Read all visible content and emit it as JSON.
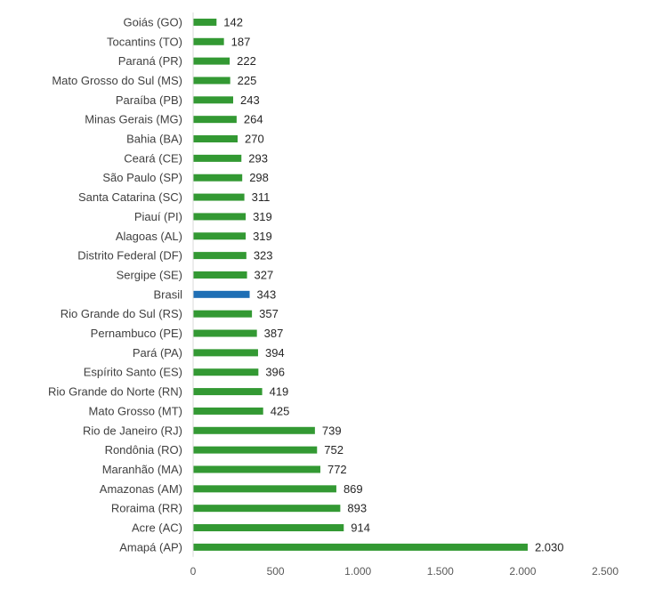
{
  "chart_data": {
    "type": "bar",
    "orientation": "horizontal",
    "categories": [
      "Goiás (GO)",
      "Tocantins (TO)",
      "Paraná (PR)",
      "Mato Grosso do Sul (MS)",
      "Paraíba (PB)",
      "Minas Gerais (MG)",
      "Bahia (BA)",
      "Ceará (CE)",
      "São Paulo (SP)",
      "Santa Catarina (SC)",
      "Piauí (PI)",
      "Alagoas (AL)",
      "Distrito Federal (DF)",
      "Sergipe (SE)",
      "Brasil",
      "Rio Grande do Sul (RS)",
      "Pernambuco (PE)",
      "Pará (PA)",
      "Espírito Santo (ES)",
      "Rio Grande do Norte (RN)",
      "Mato Grosso (MT)",
      "Rio de Janeiro (RJ)",
      "Rondônia (RO)",
      "Maranhão (MA)",
      "Amazonas (AM)",
      "Roraima (RR)",
      "Acre (AC)",
      "Amapá (AP)"
    ],
    "values": [
      142,
      187,
      222,
      225,
      243,
      264,
      270,
      293,
      298,
      311,
      319,
      319,
      323,
      327,
      343,
      357,
      387,
      394,
      396,
      419,
      425,
      739,
      752,
      772,
      869,
      893,
      914,
      2030
    ],
    "value_labels": [
      "142",
      "187",
      "222",
      "225",
      "243",
      "264",
      "270",
      "293",
      "298",
      "311",
      "319",
      "319",
      "323",
      "327",
      "343",
      "357",
      "387",
      "394",
      "396",
      "419",
      "425",
      "739",
      "752",
      "772",
      "869",
      "893",
      "914",
      "2.030"
    ],
    "xlim": [
      0,
      2500
    ],
    "x_ticks": [
      0,
      500,
      1000,
      1500,
      2000,
      2500
    ],
    "x_tick_labels": [
      "0",
      "500",
      "1.000",
      "1.500",
      "2.000",
      "2.500"
    ],
    "grid": false,
    "legend": "none",
    "colors": {
      "default": "#339933",
      "highlight": "#1f6fb5"
    },
    "highlight_category": "Brasil"
  }
}
